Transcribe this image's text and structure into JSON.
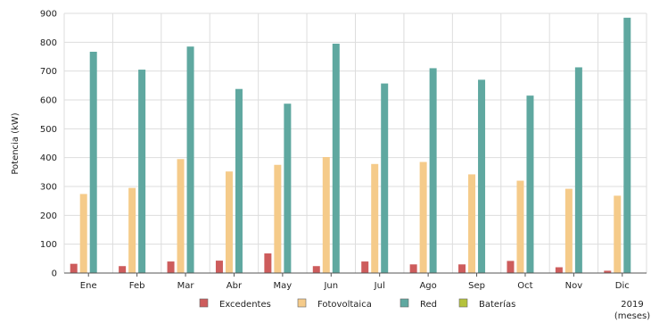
{
  "chart_data": {
    "type": "bar",
    "ylabel": "Potencia (kW)",
    "xlabel_year": "2019",
    "xlabel_unit": "(meses)",
    "categories": [
      "Ene",
      "Feb",
      "Mar",
      "Abr",
      "May",
      "Jun",
      "Jul",
      "Ago",
      "Sep",
      "Oct",
      "Nov",
      "Dic"
    ],
    "ylim": [
      0,
      900
    ],
    "yticks": [
      0,
      100,
      200,
      300,
      400,
      500,
      600,
      700,
      800,
      900
    ],
    "grid": true,
    "legend_position": "bottom",
    "series": [
      {
        "name": "Excedentes",
        "color": "#cd5c5c",
        "values": [
          32,
          24,
          40,
          43,
          68,
          24,
          40,
          30,
          30,
          42,
          20,
          8
        ]
      },
      {
        "name": "Fotovoltaica",
        "color": "#f5cb8a",
        "values": [
          274,
          295,
          395,
          352,
          375,
          402,
          378,
          385,
          342,
          320,
          292,
          268
        ]
      },
      {
        "name": "Red",
        "color": "#5fa8a0",
        "values": [
          767,
          705,
          785,
          638,
          587,
          795,
          657,
          710,
          670,
          615,
          713,
          885
        ]
      },
      {
        "name": "Baterías",
        "color": "#b5c23c",
        "values": [
          0,
          0,
          0,
          0,
          0,
          0,
          0,
          0,
          0,
          0,
          0,
          0
        ]
      }
    ]
  }
}
